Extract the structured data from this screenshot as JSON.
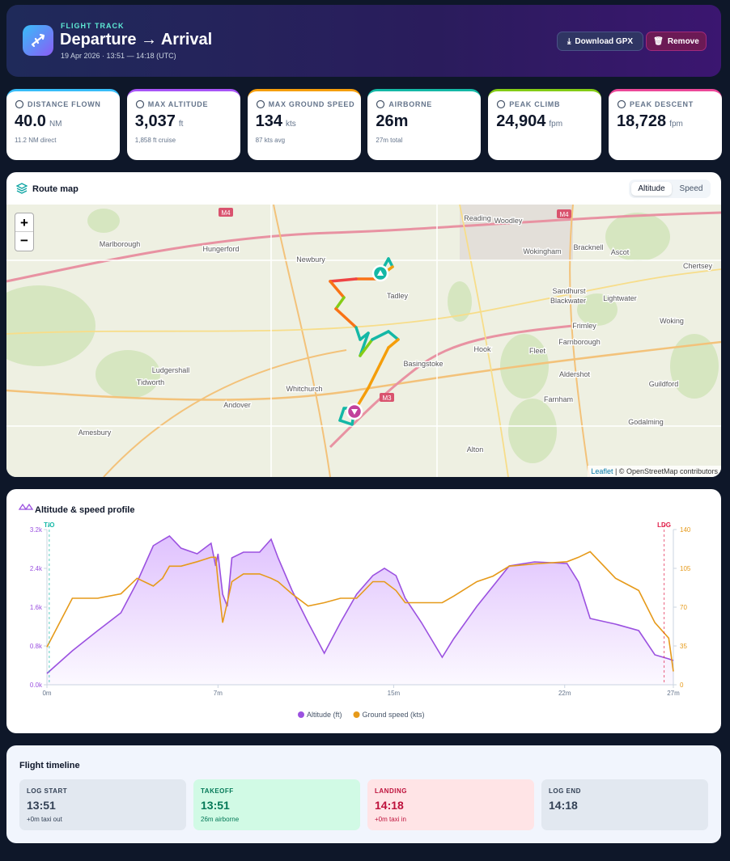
{
  "header": {
    "eyebrow": "FLIGHT TRACK",
    "title": "Departure → Arrival",
    "subtitle": "19 Apr 2026 · 13:51 — 14:18 (UTC)",
    "buttons": [
      "Download GPX",
      "Remove"
    ]
  },
  "stats": [
    {
      "label": "DISTANCE FLOWN",
      "value": "40.0",
      "unit": "NM",
      "note": "11.2 NM direct",
      "color": "#38bdf8"
    },
    {
      "label": "MAX ALTITUDE",
      "value": "3,037",
      "unit": "ft",
      "note": "1,858 ft cruise",
      "color": "#a855f7"
    },
    {
      "label": "MAX GROUND SPEED",
      "value": "134",
      "unit": "kts",
      "note": "87 kts avg",
      "color": "#f59e0b"
    },
    {
      "label": "AIRBORNE",
      "value": "26m",
      "unit": "",
      "note": "27m total",
      "color": "#14b8a6"
    },
    {
      "label": "PEAK CLIMB",
      "value": "24,904",
      "unit": "fpm",
      "note": "",
      "color": "#84cc16"
    },
    {
      "label": "PEAK DESCENT",
      "value": "18,728",
      "unit": "fpm",
      "note": "",
      "color": "#ec4899"
    }
  ],
  "map": {
    "title": "Route map",
    "toggle": [
      "Altitude",
      "Speed"
    ],
    "zoom": [
      "+",
      "−"
    ],
    "labels": [
      "Reading",
      "Woodley",
      "Marlborough",
      "Hungerford",
      "Newbury",
      "Wokingham",
      "Bracknell",
      "Ascot",
      "Chertsey",
      "Tadley",
      "Sandhurst",
      "Blackwater",
      "Lightwater",
      "Frimley",
      "Woking",
      "Farnborough",
      "Hook",
      "Fleet",
      "Basingstoke",
      "Aldershot",
      "Ludgershall",
      "Tidworth",
      "Whitchurch",
      "Andover",
      "Farnham",
      "Guildford",
      "Godalming",
      "Alton",
      "Amesbury",
      "M4",
      "M4",
      "M3"
    ],
    "attribution": [
      "Leaflet",
      "| © OpenStreetMap contributors"
    ]
  },
  "chart_data": {
    "type": "line",
    "title": "Altitude & speed profile",
    "x": [
      0,
      1.1,
      2.2,
      3.2,
      3.9,
      4.6,
      5.0,
      5.3,
      5.8,
      6.5,
      7.1,
      7.3,
      7.4,
      7.6,
      7.8,
      8.0,
      8.5,
      9.2,
      9.7,
      10.0,
      10.6,
      11.3,
      12.0,
      12.7,
      13.4,
      14.1,
      14.6,
      15.1,
      15.5,
      16.2,
      17.1,
      17.6,
      18.6,
      19.3,
      20.0,
      21.1,
      22.5,
      23.0,
      23.5,
      24.6,
      25.6,
      26.3,
      26.9,
      27.1
    ],
    "xlim": [
      0,
      27.1
    ],
    "xticks": [
      {
        "value": 0,
        "label": "0m"
      },
      {
        "value": 7.4,
        "label": "7m"
      },
      {
        "value": 15,
        "label": "15m"
      },
      {
        "value": 22.4,
        "label": "22m"
      },
      {
        "value": 27.1,
        "label": "27m"
      }
    ],
    "ylim": [
      0,
      3200
    ],
    "yticks": [
      {
        "value": 0,
        "label": "0.0k"
      },
      {
        "value": 800,
        "label": "0.8k"
      },
      {
        "value": 1600,
        "label": "1.6k"
      },
      {
        "value": 2400,
        "label": "2.4k"
      },
      {
        "value": 3200,
        "label": "3.2k"
      }
    ],
    "y2lim": [
      0,
      140
    ],
    "y2ticks": [
      0,
      35,
      70,
      105,
      140
    ],
    "series": [
      {
        "name": "Altitude (ft)",
        "color": "#9b51e0",
        "values": [
          233,
          700,
          1117,
          1483,
          2117,
          2867,
          2983,
          3067,
          2817,
          2700,
          2917,
          2450,
          2700,
          1867,
          1617,
          2617,
          2733,
          2733,
          3000,
          2617,
          1950,
          1283,
          650,
          1283,
          1867,
          2250,
          2400,
          2250,
          1783,
          1283,
          567,
          950,
          1617,
          2033,
          2450,
          2533,
          2500,
          2117,
          1367,
          1250,
          1117,
          617,
          533,
          500
        ]
      },
      {
        "name": "Ground speed (kts)",
        "color": "#e69a1a",
        "axis": "y2",
        "values": [
          34,
          78,
          78,
          82,
          96,
          89,
          96,
          107,
          107,
          111,
          115,
          115,
          93,
          56,
          74,
          93,
          100,
          100,
          96,
          93,
          82,
          71,
          74,
          78,
          78,
          93,
          93,
          85,
          74,
          74,
          74,
          80,
          93,
          98,
          107,
          109,
          111,
          115,
          120,
          96,
          85,
          56,
          42,
          12
        ]
      }
    ],
    "annotations": [
      {
        "x": 0.1,
        "label": "T/O",
        "color": "#14b8a6"
      },
      {
        "x": 26.7,
        "label": "LDG",
        "color": "#e11d48"
      }
    ],
    "legend": "bottom"
  },
  "timeline": {
    "title": "Flight timeline",
    "items": [
      {
        "label": "LOG START",
        "time": "13:51",
        "note": "+0m taxi out",
        "bg": "#e2e8f0",
        "fg": "#334155"
      },
      {
        "label": "TAKEOFF",
        "time": "13:51",
        "note": "26m airborne",
        "bg": "#d1fae5",
        "fg": "#047857"
      },
      {
        "label": "LANDING",
        "time": "14:18",
        "note": "+0m taxi in",
        "bg": "#ffe4e6",
        "fg": "#be123c"
      },
      {
        "label": "LOG END",
        "time": "14:18",
        "note": "",
        "bg": "#e2e8f0",
        "fg": "#334155"
      }
    ]
  }
}
